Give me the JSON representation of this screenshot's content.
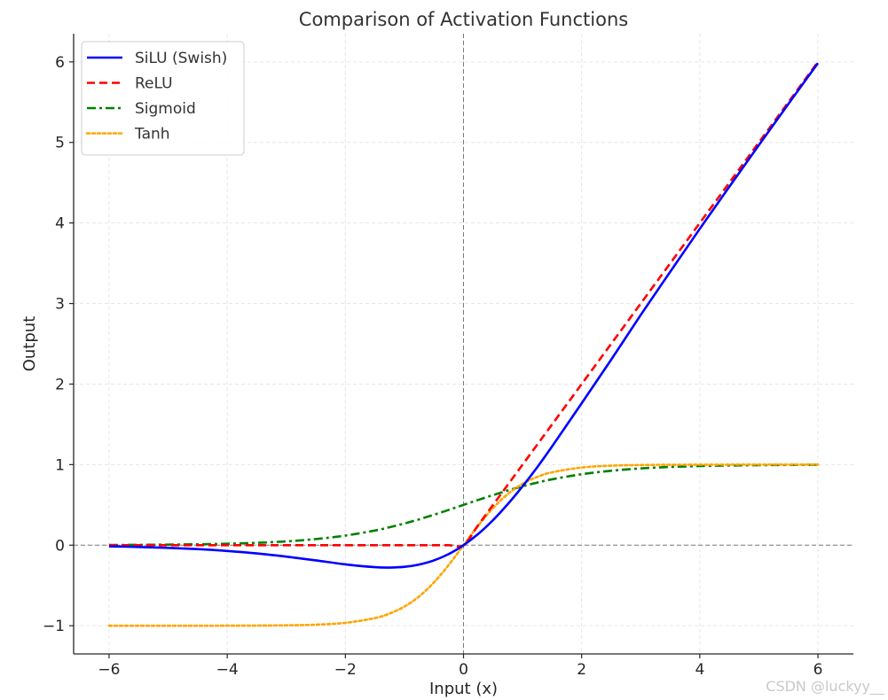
{
  "chart_data": {
    "type": "line",
    "title": "Comparison of Activation Functions",
    "xlabel": "Input (x)",
    "ylabel": "Output",
    "xlim": [
      -6.6,
      6.6
    ],
    "ylim": [
      -1.35,
      6.35
    ],
    "xticks": [
      -6,
      -4,
      -2,
      0,
      2,
      4,
      6
    ],
    "yticks": [
      -1,
      0,
      1,
      2,
      3,
      4,
      5,
      6
    ],
    "xtick_labels": [
      "−6",
      "−4",
      "−2",
      "0",
      "2",
      "4",
      "6"
    ],
    "ytick_labels": [
      "−1",
      "0",
      "1",
      "2",
      "3",
      "4",
      "5",
      "6"
    ],
    "grid": true,
    "legend_position": "top-left",
    "reference_lines": {
      "x": 0,
      "y": 0
    },
    "x": [
      -6,
      -5.5,
      -5,
      -4.5,
      -4,
      -3.5,
      -3,
      -2.5,
      -2,
      -1.5,
      -1.25,
      -1,
      -0.75,
      -0.5,
      -0.25,
      0,
      0.25,
      0.5,
      0.75,
      1,
      1.25,
      1.5,
      2,
      2.5,
      3,
      3.5,
      4,
      4.5,
      5,
      5.5,
      6
    ],
    "series": [
      {
        "name": "SiLU (Swish)",
        "color": "#0000ff",
        "style": "solid",
        "values": [
          -0.015,
          -0.022,
          -0.033,
          -0.049,
          -0.072,
          -0.102,
          -0.142,
          -0.189,
          -0.238,
          -0.273,
          -0.278,
          -0.269,
          -0.24,
          -0.189,
          -0.11,
          0.0,
          0.14,
          0.311,
          0.51,
          0.731,
          0.97,
          1.227,
          1.762,
          2.303,
          2.858,
          3.395,
          3.928,
          4.45,
          4.967,
          5.478,
          5.985
        ]
      },
      {
        "name": "ReLU",
        "color": "#ff0000",
        "style": "dashed",
        "values": [
          0,
          0,
          0,
          0,
          0,
          0,
          0,
          0,
          0,
          0,
          0,
          0,
          0,
          0,
          0,
          0,
          0.25,
          0.5,
          0.75,
          1,
          1.25,
          1.5,
          2,
          2.5,
          3,
          3.5,
          4,
          4.5,
          5,
          5.5,
          6
        ]
      },
      {
        "name": "Sigmoid",
        "color": "#008000",
        "style": "dashdot",
        "values": [
          0.002,
          0.004,
          0.007,
          0.011,
          0.018,
          0.029,
          0.047,
          0.076,
          0.119,
          0.182,
          0.223,
          0.269,
          0.321,
          0.378,
          0.438,
          0.5,
          0.562,
          0.622,
          0.679,
          0.731,
          0.777,
          0.818,
          0.881,
          0.924,
          0.953,
          0.971,
          0.982,
          0.989,
          0.993,
          0.996,
          0.998
        ]
      },
      {
        "name": "Tanh",
        "color": "#ffa500",
        "style": "dotted",
        "values": [
          -1.0,
          -1.0,
          -1.0,
          -1.0,
          -0.999,
          -0.998,
          -0.995,
          -0.987,
          -0.964,
          -0.905,
          -0.848,
          -0.762,
          -0.635,
          -0.462,
          -0.245,
          0.0,
          0.245,
          0.462,
          0.635,
          0.762,
          0.848,
          0.905,
          0.964,
          0.987,
          0.995,
          0.998,
          0.999,
          1.0,
          1.0,
          1.0,
          1.0
        ]
      }
    ]
  },
  "watermark": "CSDN @luckyy__"
}
